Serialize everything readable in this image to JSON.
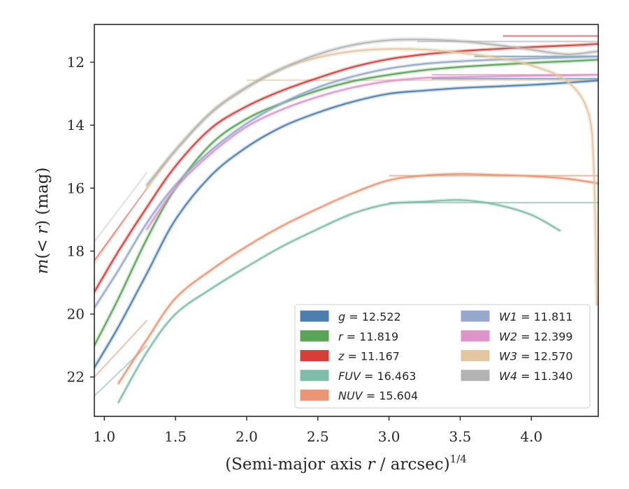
{
  "chart_data": {
    "type": "line",
    "xlabel": "(Semi-major axis r / arcsec)",
    "xlabel_var": "r",
    "xlabel_exp": "1/4",
    "ylabel": "m(< r) (mag)",
    "xlim": [
      0.93,
      4.47
    ],
    "ylim": [
      23.25,
      10.8
    ],
    "y_inverted": true,
    "xticks": [
      "1.0",
      "1.5",
      "2.0",
      "2.5",
      "3.0",
      "3.5",
      "4.0"
    ],
    "xtick_values": [
      1.0,
      1.5,
      2.0,
      2.5,
      3.0,
      3.5,
      4.0
    ],
    "yticks": [
      "12",
      "14",
      "16",
      "18",
      "20",
      "22"
    ],
    "ytick_values": [
      12,
      14,
      16,
      18,
      20,
      22
    ],
    "grid": false,
    "legend_position": "lower-right",
    "legend_columns": 2,
    "series": [
      {
        "name": "g",
        "label_value": "12.522",
        "total_mag": 12.522,
        "color": "#4c7faf",
        "x": [
          0.93,
          1.1,
          1.3,
          1.5,
          1.75,
          2.0,
          2.25,
          2.5,
          2.75,
          3.0,
          3.25,
          3.5,
          3.75,
          4.0,
          4.25,
          4.47
        ],
        "y": [
          21.7,
          20.4,
          18.7,
          17.0,
          15.6,
          14.7,
          14.05,
          13.6,
          13.25,
          13.0,
          12.9,
          12.82,
          12.77,
          12.72,
          12.65,
          12.58
        ]
      },
      {
        "name": "r",
        "label_value": "11.819",
        "total_mag": 11.819,
        "color": "#5aa455",
        "x": [
          0.93,
          1.1,
          1.3,
          1.5,
          1.75,
          2.0,
          2.25,
          2.5,
          2.75,
          3.0,
          3.25,
          3.5,
          3.75,
          4.0,
          4.25,
          4.47
        ],
        "y": [
          21.0,
          19.5,
          17.6,
          16.0,
          14.6,
          13.8,
          13.3,
          12.9,
          12.6,
          12.4,
          12.25,
          12.15,
          12.08,
          12.02,
          11.97,
          11.92
        ]
      },
      {
        "name": "z",
        "label_value": "11.167",
        "total_mag": 11.167,
        "color": "#d43f3a",
        "x": [
          0.93,
          1.1,
          1.3,
          1.5,
          1.75,
          2.0,
          2.25,
          2.5,
          2.75,
          3.0,
          3.25,
          3.5,
          3.75,
          4.0,
          4.25,
          4.47
        ],
        "y": [
          19.3,
          18.0,
          16.6,
          15.3,
          14.1,
          13.4,
          12.9,
          12.5,
          12.15,
          11.9,
          11.75,
          11.65,
          11.58,
          11.52,
          11.47,
          11.42
        ]
      },
      {
        "name": "FUV",
        "label_value": "16.463",
        "total_mag": 16.463,
        "color": "#7fbcaa",
        "x": [
          1.1,
          1.3,
          1.5,
          1.75,
          2.0,
          2.25,
          2.5,
          2.75,
          3.0,
          3.25,
          3.5,
          3.75,
          4.0,
          4.2
        ],
        "y": [
          22.8,
          21.2,
          20.0,
          19.2,
          18.5,
          17.85,
          17.3,
          16.8,
          16.5,
          16.43,
          16.38,
          16.52,
          16.85,
          17.35
        ]
      },
      {
        "name": "NUV",
        "label_value": "15.604",
        "total_mag": 15.604,
        "color": "#ea9675",
        "x": [
          1.1,
          1.3,
          1.5,
          1.75,
          2.0,
          2.25,
          2.5,
          2.75,
          3.0,
          3.25,
          3.5,
          3.75,
          4.0,
          4.25,
          4.47
        ],
        "y": [
          22.2,
          20.8,
          19.5,
          18.6,
          17.85,
          17.2,
          16.65,
          16.15,
          15.75,
          15.6,
          15.55,
          15.58,
          15.62,
          15.7,
          15.85
        ]
      },
      {
        "name": "W1",
        "label_value": "11.811",
        "total_mag": 11.811,
        "color": "#95a8cc",
        "x": [
          0.93,
          1.1,
          1.3,
          1.5,
          1.75,
          2.0,
          2.25,
          2.5,
          2.75,
          3.0,
          3.25,
          3.5,
          3.75,
          4.0,
          4.25,
          4.47
        ],
        "y": [
          19.8,
          18.6,
          17.1,
          15.9,
          14.8,
          13.95,
          13.3,
          12.8,
          12.45,
          12.2,
          12.05,
          11.97,
          11.92,
          11.88,
          11.85,
          11.82
        ]
      },
      {
        "name": "W2",
        "label_value": "12.399",
        "total_mag": 12.399,
        "color": "#dd95c9",
        "x": [
          1.3,
          1.5,
          1.75,
          2.0,
          2.25,
          2.5,
          2.75,
          3.0,
          3.25,
          3.5,
          3.75,
          4.0,
          4.25,
          4.47
        ],
        "y": [
          17.3,
          16.0,
          14.9,
          14.05,
          13.5,
          13.1,
          12.8,
          12.6,
          12.5,
          12.47,
          12.45,
          12.43,
          12.42,
          12.4
        ]
      },
      {
        "name": "W3",
        "label_value": "12.570",
        "total_mag": 12.57,
        "color": "#e2c7a1",
        "x": [
          1.3,
          1.5,
          1.75,
          2.0,
          2.25,
          2.5,
          2.75,
          3.0,
          3.25,
          3.5,
          3.75,
          4.0,
          4.25,
          4.4,
          4.44,
          4.46
        ],
        "y": [
          16.0,
          14.8,
          13.6,
          12.8,
          12.2,
          11.85,
          11.65,
          11.58,
          11.6,
          11.7,
          11.85,
          12.1,
          12.6,
          13.6,
          15.5,
          19.7
        ]
      },
      {
        "name": "W4",
        "label_value": "11.340",
        "total_mag": 11.34,
        "color": "#b3b3b3",
        "x": [
          1.3,
          1.5,
          1.75,
          2.0,
          2.25,
          2.5,
          2.75,
          3.0,
          3.25,
          3.5,
          3.75,
          4.0,
          4.25,
          4.47
        ],
        "y": [
          15.9,
          14.8,
          13.6,
          12.8,
          12.2,
          11.75,
          11.45,
          11.3,
          11.28,
          11.33,
          11.45,
          11.6,
          11.75,
          11.65
        ]
      }
    ],
    "total_mag_lines": [
      {
        "name": "g",
        "x_start": 3.3,
        "value": 12.522
      },
      {
        "name": "r",
        "x_start": 3.6,
        "value": 11.819
      },
      {
        "name": "z",
        "x_start": 3.8,
        "value": 11.167
      },
      {
        "name": "FUV",
        "x_start": 3.0,
        "value": 16.463
      },
      {
        "name": "NUV",
        "x_start": 3.0,
        "value": 15.604
      },
      {
        "name": "W1",
        "x_start": 3.6,
        "value": 11.811
      },
      {
        "name": "W2",
        "x_start": 3.3,
        "value": 12.399
      },
      {
        "name": "W3",
        "x_start": 2.0,
        "value": 12.57
      },
      {
        "name": "W4",
        "x_start": 3.2,
        "value": 11.34
      }
    ],
    "inner_extrapolation": [
      {
        "name": "z",
        "x": [
          0.93,
          1.3
        ],
        "y": [
          18.3,
          16.0
        ],
        "color": "#d43f3a"
      },
      {
        "name": "W3",
        "x": [
          0.93,
          1.3
        ],
        "y": [
          18.4,
          16.0
        ],
        "color": "#e2c7a1"
      },
      {
        "name": "W4",
        "x": [
          0.93,
          1.3
        ],
        "y": [
          17.7,
          15.5
        ],
        "color": "#c9c9c9"
      },
      {
        "name": "FUV",
        "x": [
          0.93,
          1.3
        ],
        "y": [
          22.6,
          21.0
        ],
        "color": "#7fbcaa"
      },
      {
        "name": "NUV",
        "x": [
          0.93,
          1.3
        ],
        "y": [
          22.0,
          20.2
        ],
        "color": "#ea9675"
      }
    ]
  }
}
